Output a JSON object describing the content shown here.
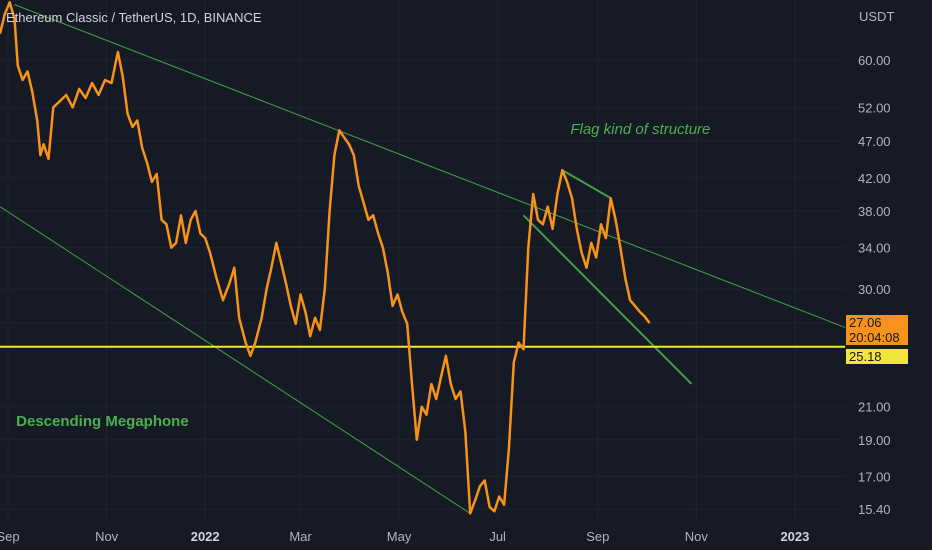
{
  "chart_data": {
    "type": "line",
    "title": "Ethereum Classic / TetherUS, 1D, BINANCE",
    "ylabel": "USDT",
    "yscale": "log",
    "ylim": [
      14.9,
      72
    ],
    "xlim": [
      "2021-08-27",
      "2023-02-01"
    ],
    "y_ticks": [
      "60.00",
      "52.00",
      "47.00",
      "42.00",
      "38.00",
      "34.00",
      "30.00",
      "27.06",
      "21.00",
      "19.00",
      "17.00",
      "15.40"
    ],
    "x_ticks": [
      {
        "label": "Sep",
        "date": "2021-09-01",
        "bold": false
      },
      {
        "label": "Nov",
        "date": "2021-11-01",
        "bold": false
      },
      {
        "label": "2022",
        "date": "2022-01-01",
        "bold": true
      },
      {
        "label": "Mar",
        "date": "2022-03-01",
        "bold": false
      },
      {
        "label": "May",
        "date": "2022-05-01",
        "bold": false
      },
      {
        "label": "Jul",
        "date": "2022-07-01",
        "bold": false
      },
      {
        "label": "Sep",
        "date": "2022-09-01",
        "bold": false
      },
      {
        "label": "Nov",
        "date": "2022-11-01",
        "bold": false
      },
      {
        "label": "2023",
        "date": "2023-01-01",
        "bold": true
      }
    ],
    "grid": true,
    "series": [
      {
        "color": "#f7931a",
        "points": [
          [
            "2021-08-27",
            65.0
          ],
          [
            "2021-08-30",
            69.0
          ],
          [
            "2021-09-02",
            71.5
          ],
          [
            "2021-09-05",
            68.0
          ],
          [
            "2021-09-07",
            59.0
          ],
          [
            "2021-09-10",
            56.5
          ],
          [
            "2021-09-13",
            58.0
          ],
          [
            "2021-09-16",
            54.5
          ],
          [
            "2021-09-19",
            50.0
          ],
          [
            "2021-09-21",
            45.0
          ],
          [
            "2021-09-23",
            46.5
          ],
          [
            "2021-09-26",
            44.5
          ],
          [
            "2021-09-29",
            52.0
          ],
          [
            "2021-10-03",
            53.0
          ],
          [
            "2021-10-07",
            54.0
          ],
          [
            "2021-10-11",
            52.0
          ],
          [
            "2021-10-15",
            55.0
          ],
          [
            "2021-10-19",
            53.5
          ],
          [
            "2021-10-23",
            56.0
          ],
          [
            "2021-10-27",
            54.0
          ],
          [
            "2021-10-31",
            56.5
          ],
          [
            "2021-11-04",
            56.0
          ],
          [
            "2021-11-08",
            61.5
          ],
          [
            "2021-11-11",
            57.0
          ],
          [
            "2021-11-14",
            51.0
          ],
          [
            "2021-11-17",
            49.0
          ],
          [
            "2021-11-20",
            50.0
          ],
          [
            "2021-11-23",
            46.0
          ],
          [
            "2021-11-26",
            44.0
          ],
          [
            "2021-11-29",
            41.5
          ],
          [
            "2021-12-02",
            42.5
          ],
          [
            "2021-12-05",
            37.0
          ],
          [
            "2021-12-08",
            36.5
          ],
          [
            "2021-12-11",
            34.0
          ],
          [
            "2021-12-14",
            34.5
          ],
          [
            "2021-12-17",
            37.5
          ],
          [
            "2021-12-20",
            34.5
          ],
          [
            "2021-12-23",
            37.0
          ],
          [
            "2021-12-26",
            38.0
          ],
          [
            "2021-12-29",
            35.5
          ],
          [
            "2022-01-01",
            35.0
          ],
          [
            "2022-01-04",
            33.5
          ],
          [
            "2022-01-08",
            31.0
          ],
          [
            "2022-01-12",
            29.0
          ],
          [
            "2022-01-16",
            30.5
          ],
          [
            "2022-01-19",
            32.0
          ],
          [
            "2022-01-22",
            27.5
          ],
          [
            "2022-01-26",
            25.5
          ],
          [
            "2022-01-29",
            24.5
          ],
          [
            "2022-02-01",
            25.5
          ],
          [
            "2022-02-05",
            27.5
          ],
          [
            "2022-02-08",
            30.0
          ],
          [
            "2022-02-11",
            32.0
          ],
          [
            "2022-02-14",
            34.5
          ],
          [
            "2022-02-17",
            32.5
          ],
          [
            "2022-02-20",
            30.5
          ],
          [
            "2022-02-23",
            28.5
          ],
          [
            "2022-02-26",
            27.0
          ],
          [
            "2022-03-01",
            29.5
          ],
          [
            "2022-03-04",
            28.0
          ],
          [
            "2022-03-07",
            26.0
          ],
          [
            "2022-03-10",
            27.5
          ],
          [
            "2022-03-13",
            26.5
          ],
          [
            "2022-03-16",
            30.0
          ],
          [
            "2022-03-19",
            38.0
          ],
          [
            "2022-03-22",
            45.0
          ],
          [
            "2022-03-25",
            48.5
          ],
          [
            "2022-03-28",
            47.5
          ],
          [
            "2022-03-31",
            46.5
          ],
          [
            "2022-04-03",
            45.0
          ],
          [
            "2022-04-06",
            41.0
          ],
          [
            "2022-04-09",
            39.0
          ],
          [
            "2022-04-12",
            37.0
          ],
          [
            "2022-04-15",
            37.5
          ],
          [
            "2022-04-18",
            35.5
          ],
          [
            "2022-04-21",
            34.0
          ],
          [
            "2022-04-24",
            31.5
          ],
          [
            "2022-04-27",
            28.5
          ],
          [
            "2022-04-30",
            29.5
          ],
          [
            "2022-05-03",
            28.0
          ],
          [
            "2022-05-06",
            27.0
          ],
          [
            "2022-05-09",
            22.5
          ],
          [
            "2022-05-12",
            19.0
          ],
          [
            "2022-05-15",
            21.0
          ],
          [
            "2022-05-18",
            20.5
          ],
          [
            "2022-05-21",
            22.5
          ],
          [
            "2022-05-24",
            21.5
          ],
          [
            "2022-05-27",
            23.0
          ],
          [
            "2022-05-30",
            24.5
          ],
          [
            "2022-06-02",
            22.5
          ],
          [
            "2022-06-05",
            21.5
          ],
          [
            "2022-06-08",
            22.0
          ],
          [
            "2022-06-11",
            19.5
          ],
          [
            "2022-06-14",
            15.2
          ],
          [
            "2022-06-17",
            15.8
          ],
          [
            "2022-06-20",
            16.5
          ],
          [
            "2022-06-23",
            16.8
          ],
          [
            "2022-06-26",
            15.5
          ],
          [
            "2022-06-29",
            15.3
          ],
          [
            "2022-07-02",
            16.0
          ],
          [
            "2022-07-05",
            15.6
          ],
          [
            "2022-07-08",
            18.5
          ],
          [
            "2022-07-11",
            24.0
          ],
          [
            "2022-07-14",
            25.5
          ],
          [
            "2022-07-17",
            25.0
          ],
          [
            "2022-07-20",
            34.0
          ],
          [
            "2022-07-23",
            40.0
          ],
          [
            "2022-07-26",
            37.0
          ],
          [
            "2022-07-29",
            36.5
          ],
          [
            "2022-08-01",
            38.5
          ],
          [
            "2022-08-04",
            36.0
          ],
          [
            "2022-08-07",
            40.0
          ],
          [
            "2022-08-10",
            43.0
          ],
          [
            "2022-08-13",
            41.5
          ],
          [
            "2022-08-16",
            39.5
          ],
          [
            "2022-08-19",
            36.0
          ],
          [
            "2022-08-22",
            33.5
          ],
          [
            "2022-08-25",
            32.0
          ],
          [
            "2022-08-28",
            34.5
          ],
          [
            "2022-08-31",
            33.0
          ],
          [
            "2022-09-03",
            36.5
          ],
          [
            "2022-09-06",
            35.0
          ],
          [
            "2022-09-09",
            39.5
          ],
          [
            "2022-09-12",
            37.0
          ],
          [
            "2022-09-15",
            34.0
          ],
          [
            "2022-09-18",
            31.0
          ],
          [
            "2022-09-21",
            29.0
          ],
          [
            "2022-09-24",
            28.5
          ],
          [
            "2022-09-27",
            28.0
          ],
          [
            "2022-09-30",
            27.6
          ],
          [
            "2022-10-03",
            27.06
          ]
        ]
      }
    ],
    "trendlines": [
      {
        "name": "megaphone-upper-line",
        "color": "#43a047",
        "width": 1,
        "from": [
          "2021-09-05",
          71.0
        ],
        "to": [
          "2023-02-01",
          26.7
        ]
      },
      {
        "name": "megaphone-lower-line",
        "color": "#43a047",
        "width": 1,
        "from": [
          "2021-08-27",
          38.5
        ],
        "to": [
          "2022-06-14",
          15.2
        ]
      },
      {
        "name": "flag-upper-line",
        "color": "#43a047",
        "width": 2,
        "from": [
          "2022-08-10",
          43.0
        ],
        "to": [
          "2022-09-09",
          39.5
        ]
      },
      {
        "name": "flag-lower-line",
        "color": "#43a047",
        "width": 2,
        "from": [
          "2022-07-17",
          37.5
        ],
        "to": [
          "2022-10-29",
          22.5
        ]
      }
    ],
    "horizontal_line": {
      "value": 25.18,
      "color": "#f2e63a"
    },
    "annotations": [
      {
        "text": "Flag kind of structure",
        "date": "2022-08-15",
        "value": 48.0,
        "italic": true,
        "color": "#4caf50"
      },
      {
        "text": "Descending Megaphone",
        "date": "2021-09-06",
        "value": 19.8,
        "italic": false,
        "color": "#4caf50"
      }
    ],
    "price_tags": {
      "last_price": "27.06",
      "countdown": "20:04:08",
      "line_price": "25.18",
      "last_color": "#f7931a",
      "line_color": "#f2e63a"
    }
  }
}
